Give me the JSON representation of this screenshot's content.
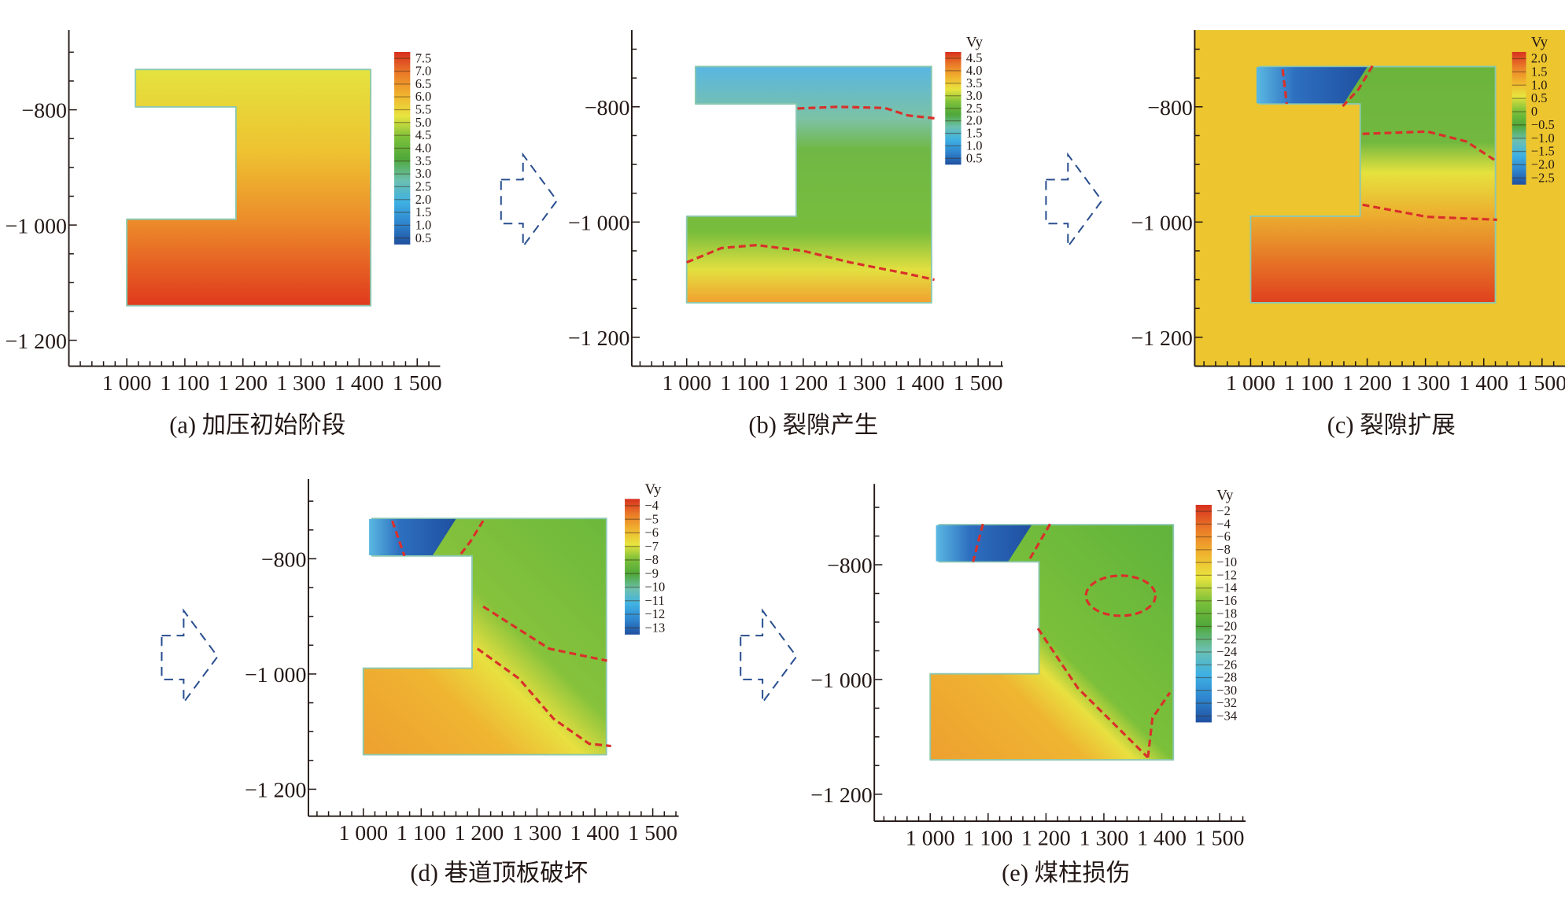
{
  "colors": {
    "colormap": [
      "#1f4f9f",
      "#2f86cf",
      "#3fb1e3",
      "#6cc0b0",
      "#4fa83a",
      "#7cc03a",
      "#e8e43e",
      "#f0b22e",
      "#ea7a28",
      "#d7301f"
    ],
    "crack_line": "#d9302a",
    "arrow": "#2a4f8f",
    "panel_c_background": "#ecc52f"
  },
  "arrow_icon": "dashed-right-arrow",
  "chart_data": [
    {
      "type": "heatmap",
      "caption": "(a) 加压初始阶段",
      "colorbar": {
        "title": "",
        "levels": [
          "7.5",
          "7.0",
          "6.5",
          "6.0",
          "5.5",
          "5.0",
          "4.5",
          "4.0",
          "3.5",
          "3.0",
          "2.5",
          "2.0",
          "1.5",
          "1.0",
          "0.5"
        ]
      },
      "x_ticks": [
        "1 000",
        "1 100",
        "1 200",
        "1 300",
        "1 400",
        "1 500"
      ],
      "x_tick_values": [
        1000,
        1100,
        1200,
        1300,
        1400,
        1500
      ],
      "y_ticks": [
        "−800",
        "−1 000",
        "−1 200"
      ],
      "y_tick_values": [
        -800,
        -1000,
        -1200
      ],
      "xlim": [
        900,
        1540
      ],
      "ylim": [
        -1245,
        -680
      ],
      "grid": false
    },
    {
      "type": "heatmap",
      "caption": "(b) 裂隙产生",
      "colorbar": {
        "title": "Vy",
        "levels": [
          "4.5",
          "4.0",
          "3.5",
          "3.0",
          "2.5",
          "2.0",
          "1.5",
          "1.0",
          "0.5"
        ]
      },
      "x_ticks": [
        "1 000",
        "1 100",
        "1 200",
        "1 300",
        "1 400",
        "1 500"
      ],
      "x_tick_values": [
        1000,
        1100,
        1200,
        1300,
        1400,
        1500
      ],
      "y_ticks": [
        "−800",
        "−1 000",
        "−1 200"
      ],
      "y_tick_values": [
        -800,
        -1000,
        -1200
      ],
      "xlim": [
        900,
        1540
      ],
      "ylim": [
        -1245,
        -680
      ],
      "grid": false
    },
    {
      "type": "heatmap",
      "caption": "(c) 裂隙扩展",
      "colorbar": {
        "title": "Vy",
        "levels": [
          "2.0",
          "1.5",
          "1.0",
          "0.5",
          "0",
          "−0.5",
          "−1.0",
          "−1.5",
          "−2.0",
          "−2.5"
        ]
      },
      "x_ticks": [
        "1 000",
        "1 100",
        "1 200",
        "1 300",
        "1 400",
        "1 500"
      ],
      "x_tick_values": [
        1000,
        1100,
        1200,
        1300,
        1400,
        1500
      ],
      "y_ticks": [
        "−800",
        "−1 000",
        "−1 200"
      ],
      "y_tick_values": [
        -800,
        -1000,
        -1200
      ],
      "xlim": [
        900,
        1540
      ],
      "ylim": [
        -1245,
        -680
      ],
      "grid": false
    },
    {
      "type": "heatmap",
      "caption": "(d) 巷道顶板破坏",
      "colorbar": {
        "title": "Vy",
        "levels": [
          "−4",
          "−5",
          "−6",
          "−7",
          "−8",
          "−9",
          "−10",
          "−11",
          "−12",
          "−13"
        ]
      },
      "x_ticks": [
        "1 000",
        "1 100",
        "1 200",
        "1 300",
        "1 400",
        "1 500"
      ],
      "x_tick_values": [
        1000,
        1100,
        1200,
        1300,
        1400,
        1500
      ],
      "y_ticks": [
        "−800",
        "−1 000",
        "−1 200"
      ],
      "y_tick_values": [
        -800,
        -1000,
        -1200
      ],
      "xlim": [
        900,
        1540
      ],
      "ylim": [
        -1245,
        -680
      ],
      "grid": false
    },
    {
      "type": "heatmap",
      "caption": "(e) 煤柱损伤",
      "colorbar": {
        "title": "Vy",
        "levels": [
          "−2",
          "−4",
          "−6",
          "−8",
          "−10",
          "−12",
          "−14",
          "−16",
          "−18",
          "−20",
          "−22",
          "−24",
          "−26",
          "−28",
          "−30",
          "−32",
          "−34"
        ]
      },
      "x_ticks": [
        "1 000",
        "1 100",
        "1 200",
        "1 300",
        "1 400",
        "1 500"
      ],
      "x_tick_values": [
        1000,
        1100,
        1200,
        1300,
        1400,
        1500
      ],
      "y_ticks": [
        "−800",
        "−1 000",
        "−1 200"
      ],
      "y_tick_values": [
        -800,
        -1000,
        -1200
      ],
      "xlim": [
        900,
        1540
      ],
      "ylim": [
        -1245,
        -680
      ],
      "grid": false
    }
  ]
}
